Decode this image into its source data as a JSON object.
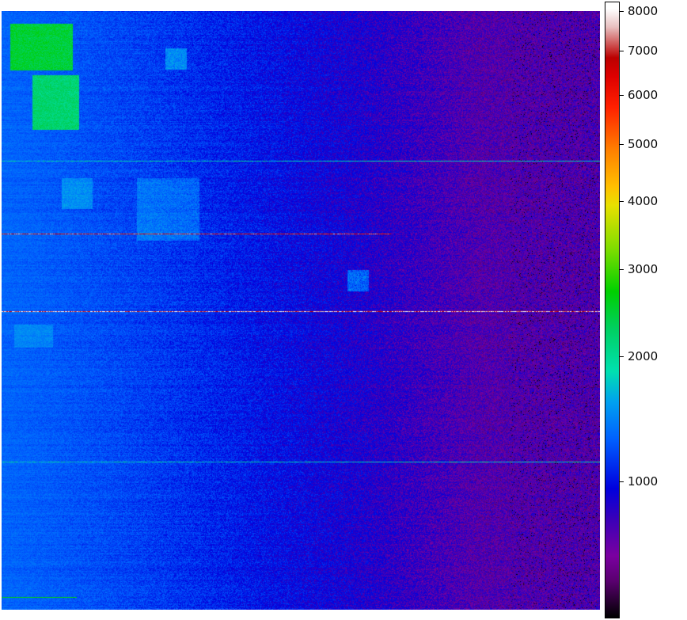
{
  "chart_data": {
    "type": "heatmap",
    "title": "",
    "xlabel": "",
    "ylabel": "",
    "colormap": "nipy_spectral",
    "colorbar": {
      "ticks": [
        8000,
        7000,
        6000,
        5000,
        4000,
        3000,
        2000,
        1000
      ],
      "tick_labels": [
        "8000",
        "7000",
        "6000",
        "5000",
        "4000",
        "3000",
        "2000",
        "1000"
      ],
      "scale": "power"
    },
    "description_values": {
      "background_left": 1300,
      "background_right": 700,
      "bright_rows": [
        {
          "row_fraction": 0.25,
          "value": 1800
        },
        {
          "row_fraction": 0.372,
          "value": 6500,
          "extent_fraction": 0.65
        },
        {
          "row_fraction": 0.501,
          "value": 7500
        },
        {
          "row_fraction": 0.752,
          "value": 1800
        }
      ]
    }
  }
}
